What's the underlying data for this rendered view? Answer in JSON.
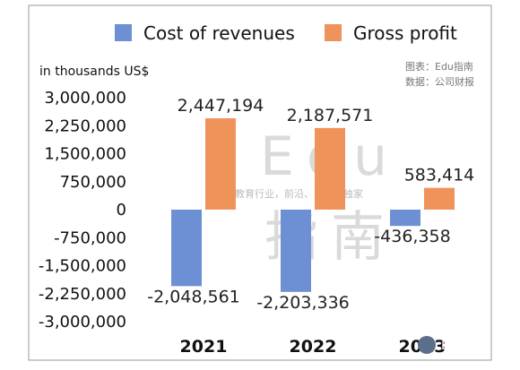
{
  "chart_data": {
    "type": "bar",
    "categories": [
      "2021",
      "2022",
      "2023"
    ],
    "series": [
      {
        "name": "Cost of revenues",
        "values": [
          -2048561,
          -2203336,
          -436358
        ],
        "labels": [
          "-2,048,561",
          "-2,203,336",
          "-436,358"
        ],
        "color": "#6d8fd4"
      },
      {
        "name": "Gross profit",
        "values": [
          2447194,
          2187571,
          583414
        ],
        "labels": [
          "2,447,194",
          "2,187,571",
          "583,414"
        ],
        "color": "#f0935a"
      }
    ],
    "ylabel": "in thousands US$",
    "ylim": [
      -3000000,
      3000000
    ],
    "yticks": [
      3000000,
      2250000,
      1500000,
      750000,
      0,
      -750000,
      -1500000,
      -2250000,
      -3000000
    ],
    "ytick_labels": [
      "3,000,000",
      "2,250,000",
      "1,500,000",
      "750,000",
      "0",
      "-750,000",
      "-1,500,000",
      "-2,250,000",
      "-3,000,000"
    ],
    "grid": false,
    "legend_position": "top"
  },
  "source": {
    "line1": "图表：Edu指南",
    "line2": "数据：公司财报"
  },
  "watermark": {
    "big_top": "Edu",
    "slogan": "教育行业，前沿、深度、独家",
    "big_bottom": "指南",
    "corner": "Edu指南"
  }
}
